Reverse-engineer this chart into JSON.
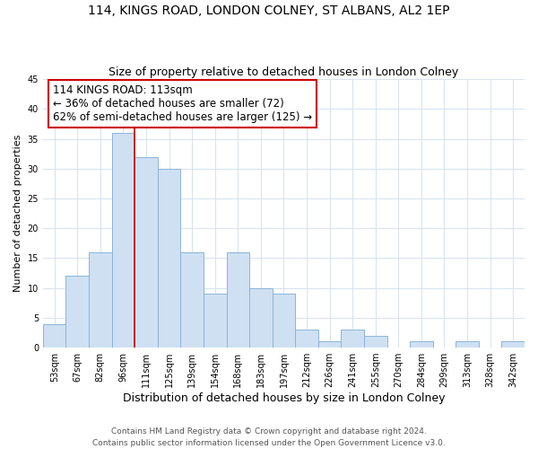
{
  "title": "114, KINGS ROAD, LONDON COLNEY, ST ALBANS, AL2 1EP",
  "subtitle": "Size of property relative to detached houses in London Colney",
  "xlabel": "Distribution of detached houses by size in London Colney",
  "ylabel": "Number of detached properties",
  "bin_labels": [
    "53sqm",
    "67sqm",
    "82sqm",
    "96sqm",
    "111sqm",
    "125sqm",
    "139sqm",
    "154sqm",
    "168sqm",
    "183sqm",
    "197sqm",
    "212sqm",
    "226sqm",
    "241sqm",
    "255sqm",
    "270sqm",
    "284sqm",
    "299sqm",
    "313sqm",
    "328sqm",
    "342sqm"
  ],
  "bin_values": [
    4,
    12,
    16,
    36,
    32,
    30,
    16,
    9,
    16,
    10,
    9,
    3,
    1,
    3,
    2,
    0,
    1,
    0,
    1,
    0,
    1
  ],
  "bar_color": "#cfe0f3",
  "bar_edge_color": "#8ab4d9",
  "vline_color": "#cc0000",
  "vline_x": 4.0,
  "annotation_line1": "114 KINGS ROAD: 113sqm",
  "annotation_line2": "← 36% of detached houses are smaller (72)",
  "annotation_line3": "62% of semi-detached houses are larger (125) →",
  "annotation_box_color": "#ffffff",
  "annotation_box_edge": "#cc0000",
  "ylim": [
    0,
    45
  ],
  "yticks": [
    0,
    5,
    10,
    15,
    20,
    25,
    30,
    35,
    40,
    45
  ],
  "footer": "Contains HM Land Registry data © Crown copyright and database right 2024.\nContains public sector information licensed under the Open Government Licence v3.0.",
  "bg_color": "#ffffff",
  "grid_color": "#d8e4f0",
  "title_fontsize": 10,
  "subtitle_fontsize": 9,
  "xlabel_fontsize": 9,
  "ylabel_fontsize": 8,
  "tick_fontsize": 7,
  "annotation_fontsize": 8.5,
  "footer_fontsize": 6.5
}
